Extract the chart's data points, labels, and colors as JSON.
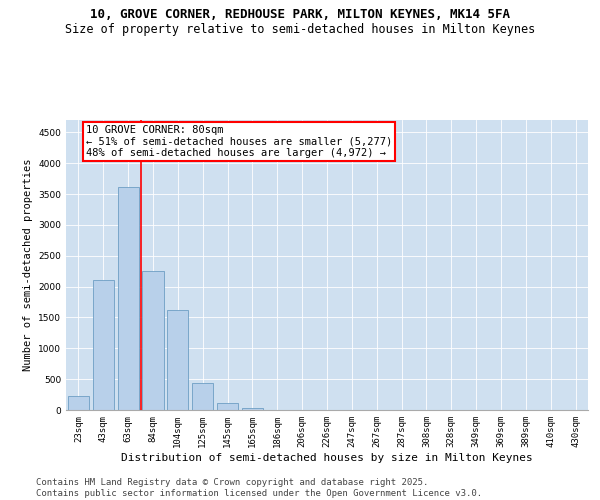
{
  "title1": "10, GROVE CORNER, REDHOUSE PARK, MILTON KEYNES, MK14 5FA",
  "title2": "Size of property relative to semi-detached houses in Milton Keynes",
  "xlabel": "Distribution of semi-detached houses by size in Milton Keynes",
  "ylabel": "Number of semi-detached properties",
  "categories": [
    "23sqm",
    "43sqm",
    "63sqm",
    "84sqm",
    "104sqm",
    "125sqm",
    "145sqm",
    "165sqm",
    "186sqm",
    "206sqm",
    "226sqm",
    "247sqm",
    "267sqm",
    "287sqm",
    "308sqm",
    "328sqm",
    "349sqm",
    "369sqm",
    "389sqm",
    "410sqm",
    "430sqm"
  ],
  "values": [
    230,
    2100,
    3620,
    2250,
    1620,
    440,
    110,
    40,
    0,
    0,
    0,
    0,
    0,
    0,
    0,
    0,
    0,
    0,
    0,
    0,
    0
  ],
  "bar_color": "#b8d0ea",
  "bar_edge_color": "#6e9ec4",
  "vline_position": 2.5,
  "vline_color": "red",
  "annotation_text": "10 GROVE CORNER: 80sqm\n← 51% of semi-detached houses are smaller (5,277)\n48% of semi-detached houses are larger (4,972) →",
  "annotation_box_facecolor": "white",
  "annotation_box_edgecolor": "red",
  "ylim": [
    0,
    4700
  ],
  "yticks": [
    0,
    500,
    1000,
    1500,
    2000,
    2500,
    3000,
    3500,
    4000,
    4500
  ],
  "grid_color": "white",
  "background_color": "#cfe0f0",
  "footer_text": "Contains HM Land Registry data © Crown copyright and database right 2025.\nContains public sector information licensed under the Open Government Licence v3.0.",
  "title1_fontsize": 9,
  "title2_fontsize": 8.5,
  "annotation_fontsize": 7.5,
  "footer_fontsize": 6.5,
  "xlabel_fontsize": 8,
  "ylabel_fontsize": 7.5,
  "tick_fontsize": 6.5
}
